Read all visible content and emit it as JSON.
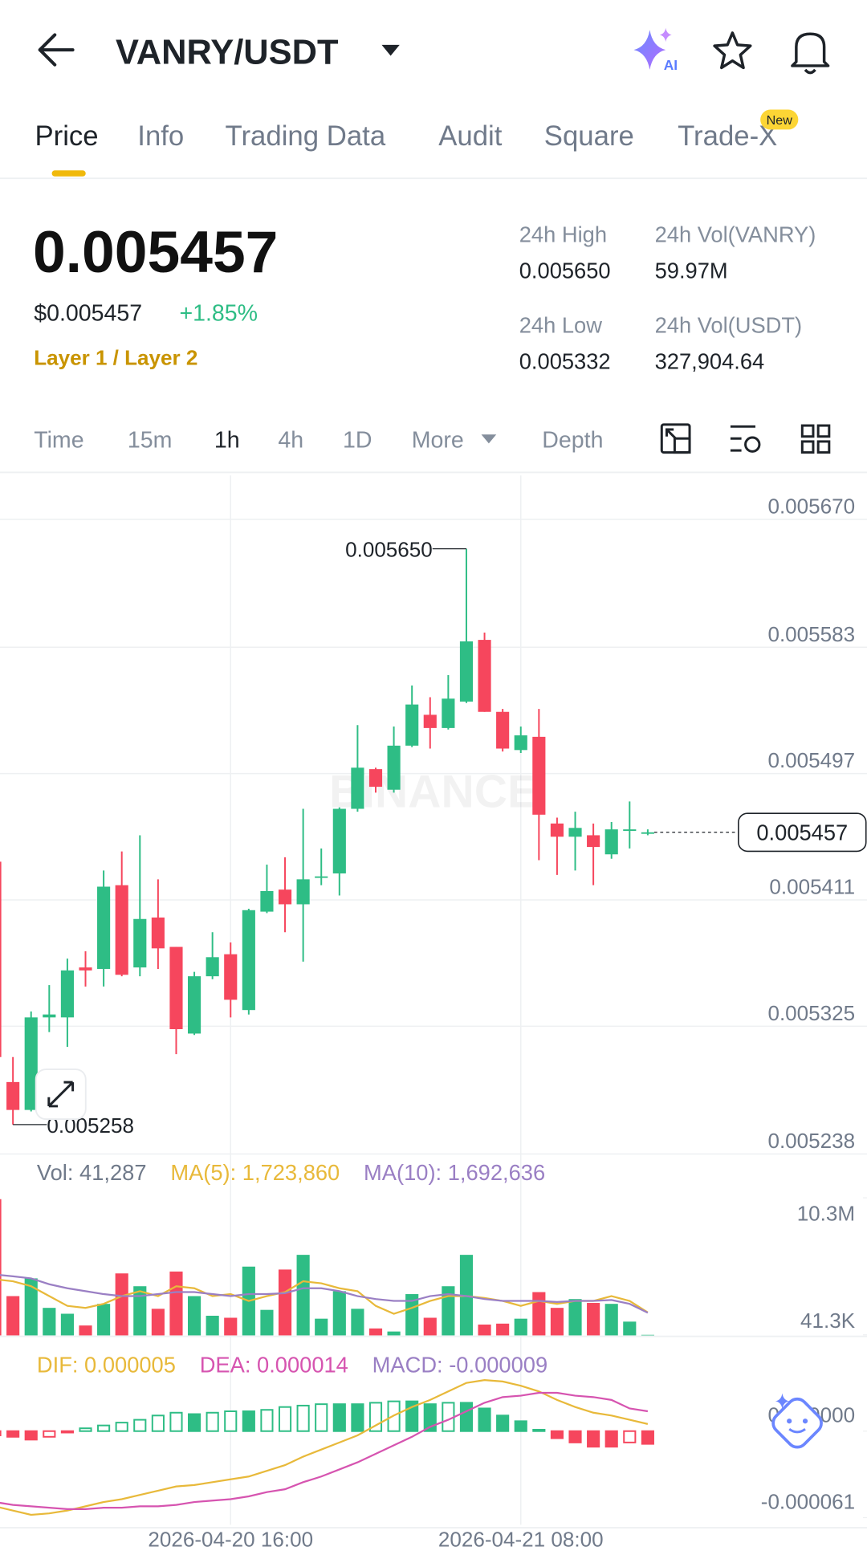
{
  "header": {
    "title": "VANRY/USDT",
    "ai_label": "AI",
    "tabs": [
      "Price",
      "Info",
      "Trading Data",
      "Audit",
      "Square",
      "Trade-X"
    ],
    "new_badge": "New"
  },
  "price": {
    "last": "0.005457",
    "usd": "$0.005457",
    "change": "+1.85%",
    "tags": "Layer 1 / Layer 2"
  },
  "stats": [
    {
      "label": "24h High",
      "value": "0.005650"
    },
    {
      "label": "24h Vol(VANRY)",
      "value": "59.97M"
    },
    {
      "label": "24h Low",
      "value": "0.005332"
    },
    {
      "label": "24h Vol(USDT)",
      "value": "327,904.64"
    }
  ],
  "intervals": [
    "Time",
    "15m",
    "1h",
    "4h",
    "1D",
    "More",
    "Depth"
  ],
  "chart_data": [
    {
      "type": "candlestick",
      "up_color": "#2ebd85",
      "down_color": "#f6465d",
      "watermark": "BINANCE",
      "max_label": "0.005650",
      "min_label": "0.005258",
      "last_label": "0.005457",
      "open": [
        0.005437,
        0.005287,
        0.005268,
        0.005331,
        0.005331,
        0.005365,
        0.005364,
        0.005421,
        0.005365,
        0.005399,
        0.005379,
        0.00532,
        0.005359,
        0.005374,
        0.005336,
        0.005403,
        0.005418,
        0.005408,
        0.005426,
        0.005429,
        0.005473,
        0.0055,
        0.005486,
        0.005516,
        0.005537,
        0.005528,
        0.005546,
        0.005588,
        0.005539,
        0.005513,
        0.005522,
        0.005463,
        0.005454,
        0.005455,
        0.005442,
        0.005458,
        0.005456
      ],
      "high": [
        0.00544,
        0.005304,
        0.005335,
        0.005353,
        0.005371,
        0.005376,
        0.005431,
        0.005444,
        0.005455,
        0.005425,
        0.005379,
        0.005362,
        0.005389,
        0.005382,
        0.005405,
        0.005435,
        0.00544,
        0.005473,
        0.005446,
        0.005474,
        0.00553,
        0.005501,
        0.005529,
        0.005557,
        0.005549,
        0.005564,
        0.00565,
        0.005593,
        0.005541,
        0.005529,
        0.005541,
        0.005467,
        0.005471,
        0.005463,
        0.005464,
        0.005478,
        0.005459
      ],
      "low": [
        0.005277,
        0.005258,
        0.005267,
        0.005321,
        0.005311,
        0.005352,
        0.005352,
        0.005359,
        0.005359,
        0.005364,
        0.005306,
        0.005319,
        0.005357,
        0.005331,
        0.005333,
        0.005402,
        0.005389,
        0.005369,
        0.005421,
        0.005414,
        0.005471,
        0.005484,
        0.005484,
        0.005515,
        0.005514,
        0.005527,
        0.005545,
        0.005539,
        0.005512,
        0.005511,
        0.005438,
        0.005428,
        0.005431,
        0.005421,
        0.005439,
        0.005446,
        0.005455
      ],
      "close": [
        0.005304,
        0.005268,
        0.005331,
        0.005333,
        0.005363,
        0.005363,
        0.00542,
        0.00536,
        0.005398,
        0.005378,
        0.005323,
        0.005359,
        0.005372,
        0.005343,
        0.005404,
        0.005417,
        0.005408,
        0.005425,
        0.005427,
        0.005473,
        0.005501,
        0.005488,
        0.005516,
        0.005544,
        0.005528,
        0.005548,
        0.005587,
        0.005539,
        0.005514,
        0.005523,
        0.005469,
        0.005454,
        0.00546,
        0.005447,
        0.005459,
        0.005459,
        0.005457
      ],
      "ylim": [
        0.005238,
        0.0057
      ],
      "yticks": [
        {
          "value": 0.00567,
          "label": "0.005670"
        },
        {
          "value": 0.005583,
          "label": "0.005583"
        },
        {
          "value": 0.005497,
          "label": "0.005497"
        },
        {
          "value": 0.005411,
          "label": "0.005411"
        },
        {
          "value": 0.005325,
          "label": "0.005325"
        },
        {
          "value": 0.005238,
          "label": "0.005238"
        }
      ],
      "grid": true
    },
    {
      "type": "bar",
      "legend": [
        {
          "text": "Vol: 41,287",
          "color": "#707a8a"
        },
        {
          "text": "MA(5): 1,723,860",
          "color": "#e8b93a"
        },
        {
          "text": "MA(10): 1,692,636",
          "color": "#9a7fc4"
        }
      ],
      "values": [
        10200000,
        2940000,
        4270000,
        2060000,
        1620000,
        740000,
        2360000,
        4640000,
        3680000,
        1990000,
        4780000,
        2940000,
        1470000,
        1320000,
        5150000,
        1910000,
        4930000,
        6030000,
        1250000,
        3310000,
        1990000,
        520000,
        290000,
        3090000,
        1320000,
        3680000,
        6030000,
        810000,
        880000,
        1250000,
        3240000,
        2060000,
        2720000,
        2430000,
        2360000,
        1030000,
        41287
      ],
      "series": [
        {
          "color": "#e8b93a",
          "values": [
            4200000,
            4050000,
            3680000,
            2940000,
            2210000,
            2060000,
            2360000,
            2940000,
            3310000,
            2940000,
            3680000,
            3530000,
            2940000,
            3090000,
            2580000,
            2940000,
            3240000,
            4050000,
            3900000,
            3530000,
            3310000,
            2210000,
            1620000,
            2060000,
            2580000,
            2940000,
            2940000,
            2800000,
            2580000,
            2210000,
            2580000,
            2360000,
            2580000,
            2580000,
            2940000,
            2580000,
            1723860
          ]
        },
        {
          "color": "#9a7fc4",
          "values": [
            4560000,
            4420000,
            4270000,
            3830000,
            3530000,
            3310000,
            3090000,
            2940000,
            2940000,
            3090000,
            3240000,
            3240000,
            3090000,
            2940000,
            3090000,
            3090000,
            3160000,
            3530000,
            3530000,
            3310000,
            2940000,
            2720000,
            2580000,
            2580000,
            2940000,
            3090000,
            2940000,
            2720000,
            2580000,
            2580000,
            2580000,
            2500000,
            2580000,
            2580000,
            2650000,
            2360000,
            1692636
          ]
        }
      ],
      "ylim": [
        0,
        13430000
      ],
      "yticks": [
        {
          "value": 10300000,
          "label": "10.3M"
        },
        {
          "value": 41300,
          "label": "41.3K"
        }
      ],
      "grid": false
    },
    {
      "type": "macd",
      "legend": [
        {
          "text": "DIF: 0.000005",
          "color": "#e8b93a"
        },
        {
          "text": "DEA: 0.000014",
          "color": "#d654b0"
        },
        {
          "text": "MACD: -0.000009",
          "color": "#9a7fc4"
        }
      ],
      "categories": [
        null,
        null,
        null,
        null,
        null,
        null,
        null,
        null,
        null,
        null,
        null,
        null,
        null,
        "2026-04-20 16:00",
        null,
        null,
        null,
        null,
        null,
        null,
        null,
        null,
        null,
        null,
        null,
        null,
        null,
        null,
        null,
        "2026-04-21 08:00",
        null,
        null,
        null,
        null,
        null,
        null,
        null
      ],
      "values": [
        -3e-06,
        -4e-06,
        -6e-06,
        -4e-06,
        -1e-06,
        2e-06,
        4e-06,
        6e-06,
        8e-06,
        1.1e-05,
        1.3e-05,
        1.2e-05,
        1.3e-05,
        1.4e-05,
        1.4e-05,
        1.5e-05,
        1.7e-05,
        1.8e-05,
        1.9e-05,
        1.9e-05,
        1.9e-05,
        2e-05,
        2.1e-05,
        2.1e-05,
        1.9e-05,
        2e-05,
        2e-05,
        1.6e-05,
        1.1e-05,
        7e-06,
        1e-06,
        -5e-06,
        -8e-06,
        -1.1e-05,
        -1.1e-05,
        -8e-06,
        -9e-06
      ],
      "series": [
        {
          "color": "#e8b93a",
          "values": [
            -5.3e-05,
            -5.6e-05,
            -5.9e-05,
            -5.8e-05,
            -5.6e-05,
            -5.3e-05,
            -5e-05,
            -4.8e-05,
            -4.5e-05,
            -4.2e-05,
            -3.9e-05,
            -3.8e-05,
            -3.6e-05,
            -3.4e-05,
            -3.2e-05,
            -2.8e-05,
            -2.4e-05,
            -1.8e-05,
            -1.3e-05,
            -8e-06,
            -3e-06,
            4e-06,
            1.1e-05,
            1.7e-05,
            2.2e-05,
            2.8e-05,
            3.4e-05,
            3.6e-05,
            3.5e-05,
            3.2e-05,
            2.8e-05,
            2.2e-05,
            1.7e-05,
            1.3e-05,
            1.1e-05,
            8e-06,
            5e-06
          ]
        },
        {
          "color": "#d654b0",
          "values": [
            -5e-05,
            -5.2e-05,
            -5.3e-05,
            -5.4e-05,
            -5.5e-05,
            -5.5e-05,
            -5.4e-05,
            -5.4e-05,
            -5.3e-05,
            -5.3e-05,
            -5.2e-05,
            -5e-05,
            -4.9e-05,
            -4.8e-05,
            -4.6e-05,
            -4.3e-05,
            -4.1e-05,
            -3.6e-05,
            -3.2e-05,
            -2.7e-05,
            -2.2e-05,
            -1.6e-05,
            -1e-05,
            -4e-06,
            3e-06,
            8e-06,
            1.4e-05,
            2e-05,
            2.4e-05,
            2.5e-05,
            2.7e-05,
            2.7e-05,
            2.5e-05,
            2.4e-05,
            2.2e-05,
            1.6e-05,
            1.4e-05
          ]
        }
      ],
      "ylim": [
        -6.6e-05,
        6.4e-05
      ],
      "yticks": [
        {
          "value": 0,
          "label": "0.000000"
        },
        {
          "value": -6.1e-05,
          "label": "-0.000061"
        }
      ],
      "grid": false
    }
  ]
}
